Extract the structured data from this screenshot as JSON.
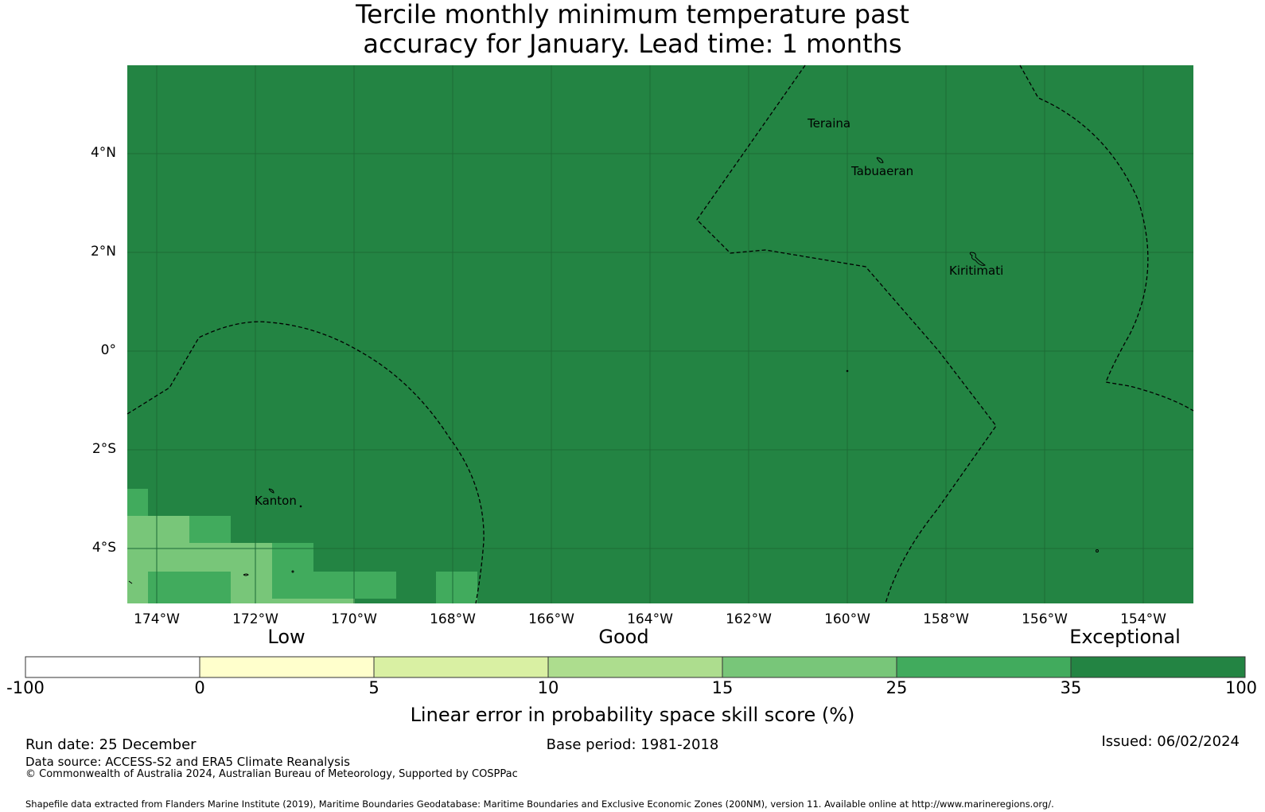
{
  "title": {
    "line1": "Tercile monthly minimum temperature past",
    "line2": "accuracy for January. Lead time: 1 months"
  },
  "map": {
    "background_color": "#238443",
    "lat_labels": [
      "4°N",
      "2°N",
      "0°",
      "2°S",
      "4°S"
    ],
    "lon_labels": [
      "174°W",
      "172°W",
      "170°W",
      "168°W",
      "166°W",
      "164°W",
      "162°W",
      "160°W",
      "158°W",
      "156°W",
      "154°W"
    ],
    "places": [
      "Teraina",
      "Tabuaeran",
      "Kiritimati",
      "Kanton"
    ]
  },
  "colorbar": {
    "categories": [
      "Low",
      "Good",
      "Exceptional"
    ],
    "ticks": [
      "-100",
      "0",
      "5",
      "10",
      "15",
      "25",
      "35",
      "100"
    ],
    "colors": [
      "#ffffff",
      "#ffffcc",
      "#d9f0a3",
      "#addd8e",
      "#78c679",
      "#41ab5d",
      "#238443"
    ],
    "label": "Linear error in probability space skill score (%)"
  },
  "footer": {
    "run_date": "Run date: 25 December",
    "base_period": "Base period: 1981-2018",
    "issued": "Issued: 06/02/2024",
    "data_source": "Data source: ACCESS-S2 and ERA5 Climate Reanalysis",
    "copyright": "© Commonwealth of Australia 2024, Australian Bureau of Meteorology, Supported by COSPPac",
    "shapefile": "Shapefile data extracted from Flanders Marine Institute (2019), Maritime Boundaries Geodatabase: Maritime Boundaries and Exclusive Economic Zones (200NM), version 11. Available online at http://www.marineregions.org/."
  }
}
